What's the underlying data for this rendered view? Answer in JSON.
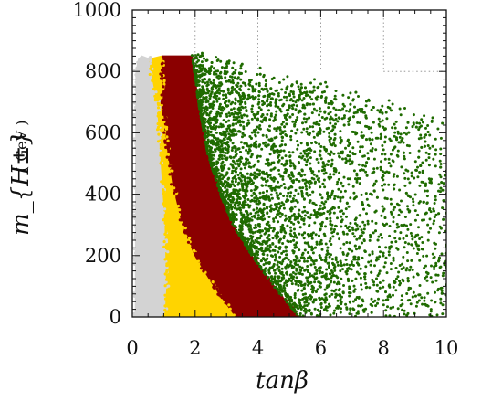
{
  "chart_data": {
    "type": "scatter",
    "xlabel": "tanβ",
    "ylabel": "m_{H±}",
    "ylabel_unit": "( GeV )",
    "xlim": [
      0,
      10
    ],
    "ylim": [
      0,
      1000
    ],
    "x_ticks": [
      0,
      2,
      4,
      6,
      8,
      10
    ],
    "y_ticks": [
      0,
      200,
      400,
      600,
      800,
      1000
    ],
    "x_tick_labels": [
      "0",
      "2",
      "4",
      "6",
      "8",
      "10"
    ],
    "y_tick_labels": [
      "0",
      "200",
      "400",
      "600",
      "800",
      "1000"
    ],
    "grid": "dotted at x = 2, 4, 6, 8 (above y = 800) and y = 800 (right of x = 8)",
    "legend": "none",
    "colors": {
      "grey": "#d3d3d3",
      "yellow": "#ffd400",
      "darkred": "#8b0000",
      "green": "#1f6b00"
    },
    "series": [
      {
        "color": "#d3d3d3",
        "region": "light grey band",
        "left_boundary": [
          [
            0.1,
            0
          ],
          [
            0.12,
            800
          ],
          [
            0.2,
            840
          ],
          [
            0.3,
            850
          ]
        ],
        "right_boundary": [
          [
            1.05,
            0
          ],
          [
            1.05,
            60
          ],
          [
            1.1,
            90
          ],
          [
            1.05,
            300
          ],
          [
            0.8,
            700
          ],
          [
            0.6,
            800
          ],
          [
            0.55,
            840
          ]
        ]
      },
      {
        "color": "#ffd400",
        "region": "yellow band",
        "left_boundary": [
          [
            1.05,
            0
          ],
          [
            1.1,
            90
          ],
          [
            1.05,
            300
          ],
          [
            0.8,
            700
          ],
          [
            0.6,
            800
          ],
          [
            0.55,
            840
          ]
        ],
        "right_boundary": [
          [
            3.3,
            0
          ],
          [
            2.6,
            100
          ],
          [
            2.0,
            200
          ],
          [
            1.6,
            300
          ],
          [
            1.3,
            430
          ],
          [
            1.05,
            600
          ],
          [
            0.95,
            800
          ],
          [
            0.95,
            850
          ]
        ]
      },
      {
        "color": "#8b0000",
        "region": "dark red band",
        "left_boundary": [
          [
            3.3,
            0
          ],
          [
            2.6,
            100
          ],
          [
            2.0,
            200
          ],
          [
            1.6,
            300
          ],
          [
            1.3,
            430
          ],
          [
            1.05,
            600
          ],
          [
            0.95,
            800
          ],
          [
            0.95,
            850
          ]
        ],
        "right_boundary": [
          [
            5.3,
            0
          ],
          [
            4.5,
            100
          ],
          [
            3.8,
            200
          ],
          [
            3.2,
            300
          ],
          [
            2.8,
            400
          ],
          [
            2.4,
            530
          ],
          [
            2.1,
            700
          ],
          [
            1.9,
            850
          ]
        ]
      },
      {
        "color": "#1f6b00",
        "region": "dark green band",
        "left_boundary": [
          [
            5.3,
            0
          ],
          [
            4.5,
            100
          ],
          [
            3.8,
            200
          ],
          [
            3.2,
            300
          ],
          [
            2.8,
            400
          ],
          [
            2.4,
            530
          ],
          [
            2.1,
            700
          ],
          [
            1.9,
            850
          ]
        ],
        "note": "scattered points, dense near the left boundary, thinning toward x = 10 and high mass; upper edge near 850 GeV"
      }
    ]
  }
}
